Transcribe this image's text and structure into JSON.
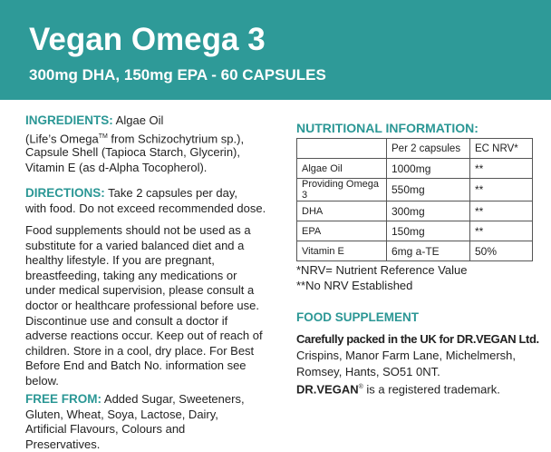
{
  "header": {
    "title": "Vegan Omega 3",
    "subtitle": "300mg DHA, 150mg EPA - 60 CAPSULES"
  },
  "ingredients": {
    "heading": "INGREDIENTS:",
    "lines": [
      "Algae Oil",
      "(Life’s Omega",
      " from Schizochytrium sp.),",
      "Capsule Shell (Tapioca Starch, Glycerin),",
      "Vitamin E (as d-Alpha Tocopherol)."
    ],
    "trademark": "TM"
  },
  "directions": {
    "heading": "DIRECTIONS:",
    "lines": [
      "Take 2 capsules per day,",
      "with food. Do not exceed recommended dose."
    ]
  },
  "warning": {
    "lines": [
      "Food supplements should not be used as a",
      "substitute for a varied balanced diet and a",
      "healthy lifestyle. If you are pregnant,",
      "breastfeeding, taking any medications or",
      "under medical supervision, please consult a",
      "doctor or healthcare professional before use.",
      "Discontinue use and consult a doctor if",
      "adverse reactions occur. Keep out of reach of",
      "children. Store in a cool, dry place. For Best",
      "Before End and Batch No. information see",
      "below."
    ]
  },
  "free_from": {
    "heading": "FREE FROM:",
    "lines": [
      "Added Sugar, Sweeteners,",
      "Gluten, Wheat, Soya, Lactose, Dairy,",
      "Artificial Flavours, Colours and",
      "Preservatives."
    ]
  },
  "nutrition": {
    "heading": "NUTRITIONAL INFORMATION:",
    "columns": [
      "Per 2 capsules",
      "EC NRV*"
    ],
    "rows": [
      [
        "Algae Oil",
        "1000mg",
        "**"
      ],
      [
        "Providing Omega 3",
        "550mg",
        "**"
      ],
      [
        "DHA",
        "300mg",
        "**"
      ],
      [
        "EPA",
        "150mg",
        "**"
      ],
      [
        "Vitamin E",
        "6mg a-TE",
        "50%"
      ]
    ],
    "footnotes": [
      "*NRV= Nutrient Reference Value",
      "**No NRV Established"
    ]
  },
  "food_supplement": {
    "heading": "FOOD SUPPLEMENT",
    "packed": "Carefully packed in the UK for DR.VEGAN Ltd.",
    "address": [
      "Crispins, Manor Farm Lane, Michelmersh,",
      "Romsey, Hants, SO51 0NT."
    ],
    "brand": "DR.VEGAN",
    "registered": "®",
    "trademark_note": " is a registered trademark."
  }
}
